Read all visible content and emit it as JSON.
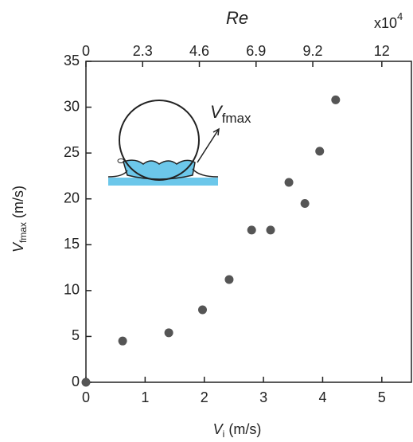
{
  "chart_data": {
    "type": "scatter",
    "title": "Re",
    "x2_multiplier": {
      "base": "x10",
      "exp": "4"
    },
    "x_label": {
      "symbol": "V",
      "sub": "i",
      "unit": " (m/s)"
    },
    "y_label": {
      "symbol": "V",
      "sub": "fmax",
      "unit": " (m/s)"
    },
    "inset_label": {
      "symbol": "V",
      "sub": "fmax"
    },
    "series": [
      {
        "color": "#555555",
        "x": [
          0,
          0.62,
          1.4,
          1.97,
          2.42,
          2.8,
          3.12,
          3.43,
          3.7,
          3.95,
          4.22
        ],
        "values": [
          0,
          4.5,
          5.4,
          7.9,
          11.2,
          16.6,
          16.6,
          21.8,
          19.5,
          25.2,
          30.8
        ]
      }
    ],
    "xlim": [
      0,
      5.5
    ],
    "xticks": [
      0,
      1,
      2,
      3,
      4,
      5
    ],
    "x2lim": [
      0,
      13.2
    ],
    "x2ticks": [
      0,
      2.3,
      4.6,
      6.9,
      9.2,
      12
    ],
    "ylim": [
      0,
      35
    ],
    "yticks": [
      0,
      5,
      10,
      15,
      20,
      25,
      30,
      35
    ]
  }
}
